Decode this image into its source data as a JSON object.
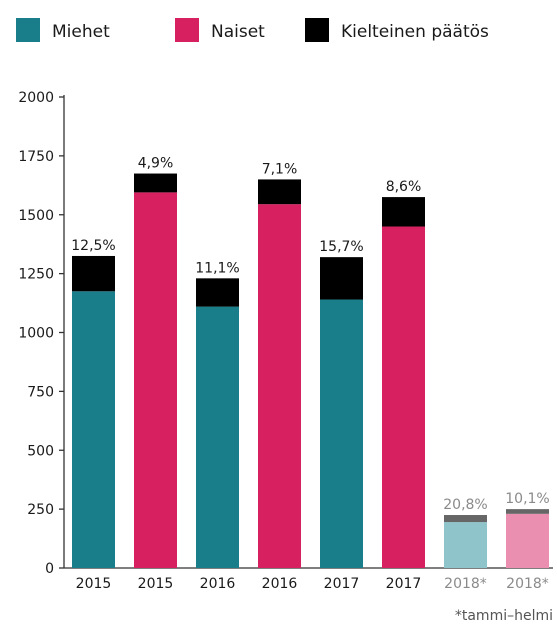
{
  "legend": [
    {
      "name": "Miehet",
      "color": "#1a7d8a"
    },
    {
      "name": "Naiset",
      "color": "#d6205f"
    },
    {
      "name": "Kielteinen päätös",
      "color": "#000000"
    }
  ],
  "chart_data": {
    "type": "bar",
    "stacked": true,
    "ylim": [
      0,
      2000
    ],
    "yticks": [
      0,
      250,
      500,
      750,
      1000,
      1250,
      1500,
      1750,
      2000
    ],
    "grid": false,
    "legend_position": "top-left",
    "categories": [
      "2015",
      "2015",
      "2016",
      "2016",
      "2017",
      "2017",
      "2018*",
      "2018*"
    ],
    "bars": [
      {
        "category": "2015",
        "group": "Miehet",
        "base": 1175,
        "negative": 150,
        "label": "12,5%",
        "muted": false
      },
      {
        "category": "2015",
        "group": "Naiset",
        "base": 1595,
        "negative": 80,
        "label": "4,9%",
        "muted": false
      },
      {
        "category": "2016",
        "group": "Miehet",
        "base": 1110,
        "negative": 120,
        "label": "11,1%",
        "muted": false
      },
      {
        "category": "2016",
        "group": "Naiset",
        "base": 1545,
        "negative": 105,
        "label": "7,1%",
        "muted": false
      },
      {
        "category": "2017",
        "group": "Miehet",
        "base": 1140,
        "negative": 180,
        "label": "15,7%",
        "muted": false
      },
      {
        "category": "2017",
        "group": "Naiset",
        "base": 1450,
        "negative": 125,
        "label": "8,6%",
        "muted": false
      },
      {
        "category": "2018*",
        "group": "Miehet",
        "base": 195,
        "negative": 30,
        "label": "20,8%",
        "muted": true
      },
      {
        "category": "2018*",
        "group": "Naiset",
        "base": 230,
        "negative": 20,
        "label": "10,1%",
        "muted": true
      }
    ],
    "colors": {
      "Miehet": "#1a7d8a",
      "Naiset": "#d6205f",
      "negative": "#000000",
      "Miehet_muted": "#8fc4ca",
      "Naiset_muted": "#eb8fb0",
      "negative_muted": "#666666",
      "muted_text": "#8a8a8a"
    }
  },
  "note": "*tammi–helmi"
}
